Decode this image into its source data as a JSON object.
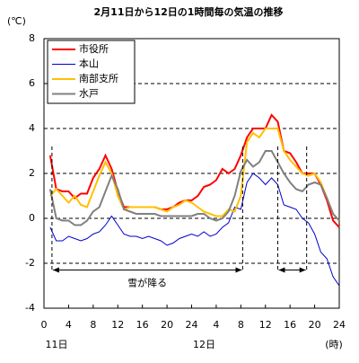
{
  "chart_data": {
    "type": "line",
    "title": "2月11日から12日の1時間毎の気温の推移",
    "y_unit": "(℃)",
    "x_unit": "(時)",
    "day_labels": [
      {
        "x": 0,
        "label": "11日"
      },
      {
        "x": 24,
        "label": "12日"
      }
    ],
    "x": [
      1,
      2,
      3,
      4,
      5,
      6,
      7,
      8,
      9,
      10,
      11,
      12,
      13,
      14,
      15,
      16,
      17,
      18,
      19,
      20,
      21,
      22,
      23,
      24,
      25,
      26,
      27,
      28,
      29,
      30,
      31,
      32,
      33,
      34,
      35,
      36,
      37,
      38,
      39,
      40,
      41,
      42,
      43,
      44,
      45,
      46,
      47,
      48
    ],
    "xlim": [
      0,
      48
    ],
    "xticks": [
      0,
      4,
      8,
      12,
      16,
      20,
      24,
      {
        "value": 28,
        "label": "4"
      },
      {
        "value": 32,
        "label": "8"
      },
      {
        "value": 36,
        "label": "12"
      },
      {
        "value": 40,
        "label": "16"
      },
      {
        "value": 44,
        "label": "20"
      },
      {
        "value": 48,
        "label": "24"
      }
    ],
    "ylim": [
      -4,
      8
    ],
    "yticks": [
      -4,
      -2,
      0,
      2,
      4,
      6,
      8
    ],
    "grid": true,
    "series": [
      {
        "name": "市役所",
        "color": "#ff0000",
        "line_width": 2,
        "values": [
          2.8,
          1.3,
          1.2,
          1.2,
          0.9,
          1.1,
          1.1,
          1.8,
          2.2,
          2.8,
          2.2,
          1.2,
          0.5,
          0.5,
          0.5,
          0.5,
          0.5,
          0.5,
          0.4,
          0.4,
          0.5,
          0.7,
          0.8,
          0.8,
          1.0,
          1.4,
          1.5,
          1.7,
          2.2,
          2.0,
          2.2,
          2.8,
          3.6,
          4.0,
          4.0,
          4.0,
          4.6,
          4.3,
          3.0,
          2.9,
          2.5,
          2.0,
          2.0,
          2.0,
          1.5,
          0.8,
          -0.1,
          -0.4
        ]
      },
      {
        "name": "本山",
        "color": "#0000cc",
        "line_width": 1,
        "values": [
          -0.4,
          -1.0,
          -1.0,
          -0.8,
          -0.9,
          -1.0,
          -0.9,
          -0.7,
          -0.6,
          -0.3,
          0.1,
          -0.3,
          -0.7,
          -0.8,
          -0.8,
          -0.9,
          -0.8,
          -0.9,
          -1.0,
          -1.2,
          -1.1,
          -0.9,
          -0.8,
          -0.7,
          -0.8,
          -0.6,
          -0.8,
          -0.7,
          -0.4,
          -0.2,
          0.5,
          0.4,
          1.6,
          2.0,
          1.8,
          1.5,
          1.8,
          1.5,
          0.6,
          0.5,
          0.4,
          0.0,
          -0.2,
          -0.7,
          -1.5,
          -1.8,
          -2.6,
          -3.0
        ]
      },
      {
        "name": "南部支所",
        "color": "#ffc000",
        "line_width": 2,
        "values": [
          1.0,
          1.3,
          1.0,
          0.7,
          1.0,
          0.6,
          0.5,
          1.2,
          1.9,
          2.5,
          2.0,
          1.0,
          0.4,
          0.5,
          0.5,
          0.5,
          0.5,
          0.5,
          0.4,
          0.3,
          0.5,
          0.6,
          0.8,
          0.7,
          0.5,
          0.3,
          0.2,
          0.1,
          0.1,
          0.4,
          0.3,
          1.0,
          3.4,
          3.8,
          3.6,
          4.0,
          4.0,
          4.0,
          3.0,
          2.6,
          2.3,
          2.0,
          1.9,
          2.0,
          1.6,
          0.9,
          0.2,
          -0.1
        ]
      },
      {
        "name": "水戸",
        "color": "#808080",
        "line_width": 2,
        "values": [
          1.3,
          0.0,
          -0.1,
          -0.1,
          -0.3,
          -0.3,
          -0.1,
          0.3,
          0.5,
          1.2,
          1.9,
          1.3,
          0.4,
          0.3,
          0.2,
          0.2,
          0.2,
          0.2,
          0.1,
          0.1,
          0.1,
          0.1,
          0.1,
          0.1,
          0.2,
          0.2,
          0.0,
          -0.1,
          0.0,
          0.3,
          1.0,
          2.1,
          2.6,
          2.3,
          2.5,
          3.0,
          3.0,
          2.5,
          2.0,
          1.6,
          1.3,
          1.2,
          1.5,
          1.6,
          1.5,
          0.9,
          0.2,
          -0.1
        ]
      }
    ],
    "snow_periods": [
      {
        "label": "雪が降る",
        "start": 1.3,
        "end": 32.3
      },
      {
        "start": 38,
        "end": 42.7
      }
    ]
  }
}
